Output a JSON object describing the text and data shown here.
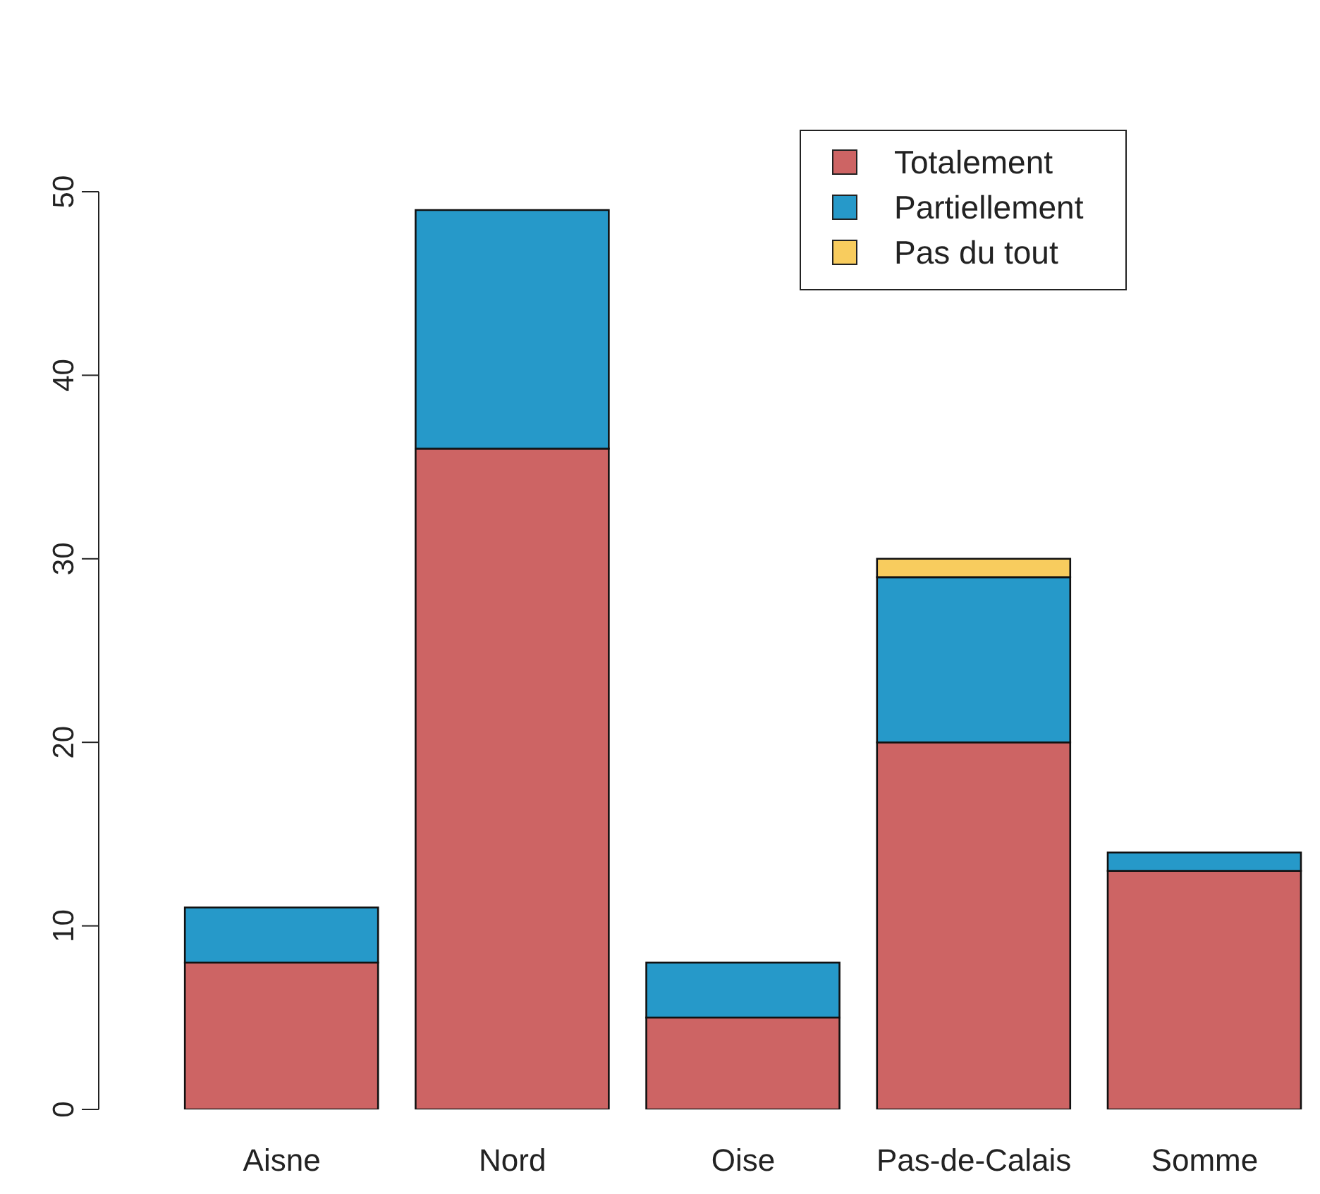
{
  "chart_data": {
    "type": "bar",
    "stacked": true,
    "categories": [
      "Aisne",
      "Nord",
      "Oise",
      "Pas-de-Calais",
      "Somme"
    ],
    "series": [
      {
        "name": "Totalement",
        "color": "#cd6464",
        "values": [
          8,
          36,
          5,
          20,
          13
        ]
      },
      {
        "name": "Partiellement",
        "color": "#2699c9",
        "values": [
          3,
          13,
          3,
          9,
          1
        ]
      },
      {
        "name": "Pas du tout",
        "color": "#f8cc5e",
        "values": [
          0,
          0,
          0,
          1,
          0
        ]
      }
    ],
    "ylim": [
      0,
      50
    ],
    "yticks": [
      0,
      10,
      20,
      30,
      40,
      50
    ],
    "grid": false,
    "legend": "top right"
  }
}
